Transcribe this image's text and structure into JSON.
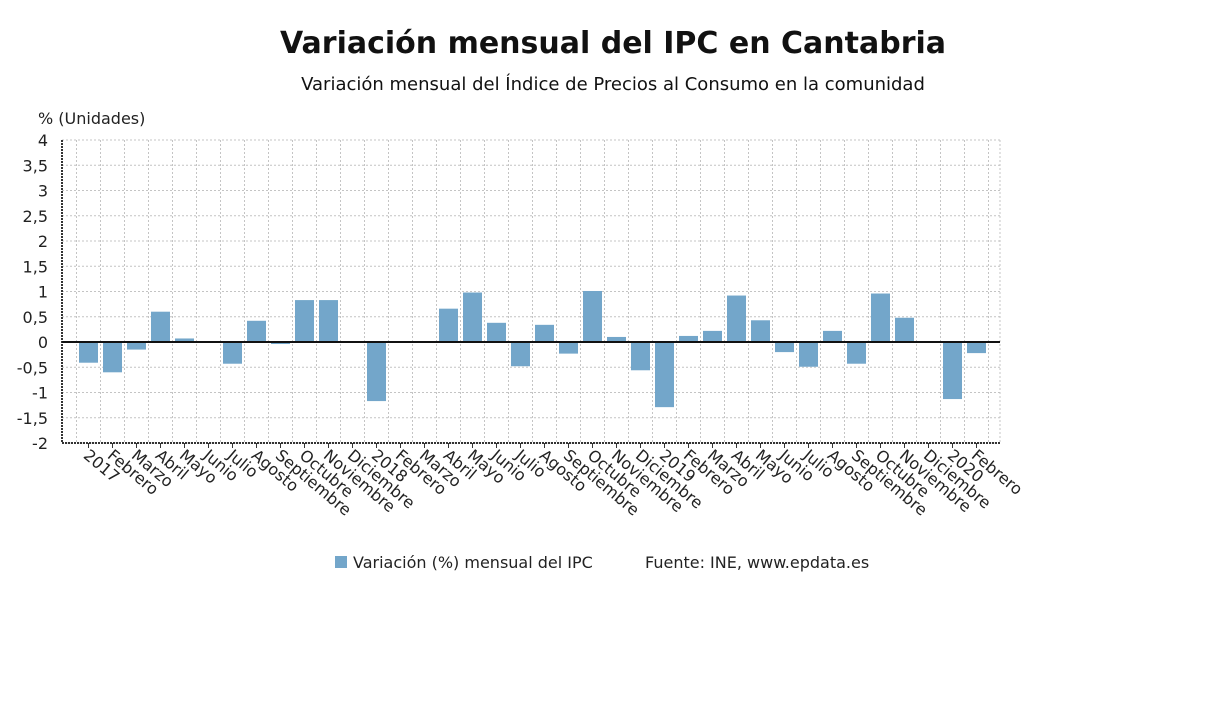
{
  "chart_data": {
    "type": "bar",
    "title": "Variación mensual del IPC en Cantabria",
    "subtitle": "Variación mensual del Índice de Precios al Consumo en la comunidad",
    "ylabel": "% (Unidades)",
    "xlabel": "",
    "ylim": [
      -2,
      4
    ],
    "yticks": [
      "4",
      "3,5",
      "3",
      "2,5",
      "2",
      "1,5",
      "1",
      "0,5",
      "0",
      "-0,5",
      "-1",
      "-1,5",
      "-2"
    ],
    "ytick_values": [
      4,
      3.5,
      3,
      2.5,
      2,
      1.5,
      1,
      0.5,
      0,
      -0.5,
      -1,
      -1.5,
      -2
    ],
    "grid": true,
    "categories": [
      "2017",
      "Febrero",
      "Marzo",
      "Abril",
      "Mayo",
      "Junio",
      "Julio",
      "Agosto",
      "Septiembre",
      "Octubre",
      "Noviembre",
      "Diciembre",
      "2018",
      "Febrero",
      "Marzo",
      "Abril",
      "Mayo",
      "Junio",
      "Julio",
      "Agosto",
      "Septiembre",
      "Octubre",
      "Noviembre",
      "Diciembre",
      "2019",
      "Febrero",
      "Marzo",
      "Abril",
      "Mayo",
      "Junio",
      "Julio",
      "Agosto",
      "Septiembre",
      "Octubre",
      "Noviembre",
      "Diciembre",
      "2020",
      "Febrero"
    ],
    "series": [
      {
        "name": "Variación (%) mensual del IPC",
        "color": "#73a6ca",
        "values": [
          -0.41,
          -0.6,
          -0.15,
          0.6,
          0.07,
          0.0,
          -0.43,
          0.42,
          -0.04,
          0.83,
          0.83,
          0.01,
          -1.17,
          -0.01,
          0.0,
          0.66,
          0.98,
          0.38,
          -0.48,
          0.34,
          -0.23,
          1.01,
          0.1,
          -0.56,
          -1.29,
          0.12,
          0.22,
          0.92,
          0.43,
          -0.2,
          -0.49,
          0.22,
          -0.43,
          0.96,
          0.48,
          -0.02,
          -1.13,
          -0.22
        ]
      }
    ],
    "legend_placement": "bottom",
    "source": "Fuente: INE, www.epdata.es"
  }
}
